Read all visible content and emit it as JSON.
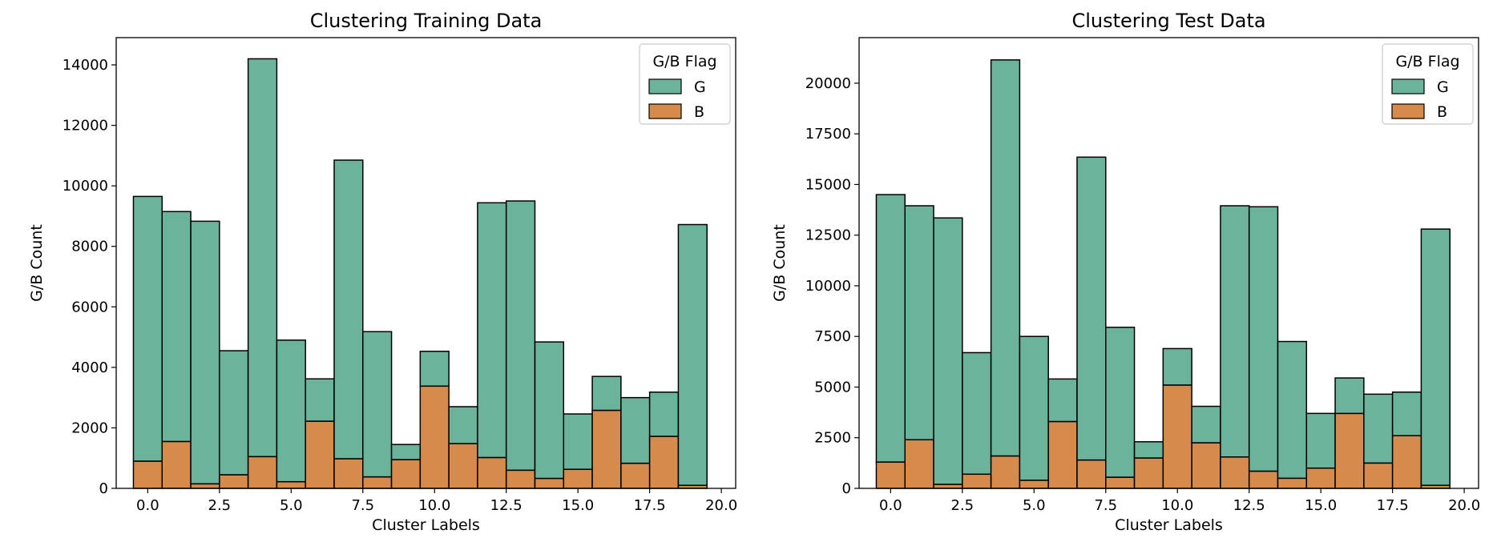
{
  "chart_data": [
    {
      "type": "bar",
      "stacked": true,
      "title": "Clustering Training Data",
      "xlabel": "Cluster Labels",
      "ylabel": "G/B Count",
      "xlim": [
        -1.1,
        20.5
      ],
      "ylim": [
        0,
        14900
      ],
      "xticks": [
        0,
        2.5,
        5,
        7.5,
        10,
        12.5,
        15,
        17.5,
        20
      ],
      "xtick_labels": [
        "0.0",
        "2.5",
        "5.0",
        "7.5",
        "10.0",
        "12.5",
        "15.0",
        "17.5",
        "20.0"
      ],
      "yticks": [
        0,
        2000,
        4000,
        6000,
        8000,
        10000,
        12000,
        14000
      ],
      "ytick_labels": [
        "0",
        "2000",
        "4000",
        "6000",
        "8000",
        "10000",
        "12000",
        "14000"
      ],
      "bin_edges": [
        -0.5,
        0.5,
        1.5,
        2.5,
        3.5,
        4.5,
        5.5,
        6.5,
        7.5,
        8.5,
        9.5,
        10.5,
        11.5,
        12.5,
        13.5,
        14.5,
        15.5,
        16.5,
        17.5,
        18.5,
        19.5
      ],
      "legend": {
        "title": "G/B Flag",
        "position": "upper right"
      },
      "grid": false,
      "series": [
        {
          "name": "B",
          "color": "#d68b4c",
          "values": [
            900,
            1550,
            150,
            450,
            1050,
            220,
            2220,
            980,
            380,
            950,
            3380,
            1480,
            1020,
            600,
            330,
            630,
            2580,
            830,
            1720,
            100
          ]
        },
        {
          "name": "G",
          "color": "#6bb39a",
          "values": [
            8750,
            7600,
            8680,
            4100,
            13150,
            4680,
            1400,
            9870,
            4800,
            500,
            1150,
            1220,
            8420,
            8900,
            4510,
            1830,
            1120,
            2170,
            1460,
            8620
          ]
        }
      ]
    },
    {
      "type": "bar",
      "stacked": true,
      "title": "Clustering Test Data",
      "xlabel": "Cluster Labels",
      "ylabel": "G/B Count",
      "xlim": [
        -1.1,
        20.5
      ],
      "ylim": [
        0,
        22250
      ],
      "xticks": [
        0,
        2.5,
        5,
        7.5,
        10,
        12.5,
        15,
        17.5,
        20
      ],
      "xtick_labels": [
        "0.0",
        "2.5",
        "5.0",
        "7.5",
        "10.0",
        "12.5",
        "15.0",
        "17.5",
        "20.0"
      ],
      "yticks": [
        0,
        2500,
        5000,
        7500,
        10000,
        12500,
        15000,
        17500,
        20000
      ],
      "ytick_labels": [
        "0",
        "2500",
        "5000",
        "7500",
        "10000",
        "12500",
        "15000",
        "17500",
        "20000"
      ],
      "bin_edges": [
        -0.5,
        0.5,
        1.5,
        2.5,
        3.5,
        4.5,
        5.5,
        6.5,
        7.5,
        8.5,
        9.5,
        10.5,
        11.5,
        12.5,
        13.5,
        14.5,
        15.5,
        16.5,
        17.5,
        18.5,
        19.5
      ],
      "legend": {
        "title": "G/B Flag",
        "position": "upper right"
      },
      "grid": false,
      "series": [
        {
          "name": "B",
          "color": "#d68b4c",
          "values": [
            1300,
            2400,
            200,
            700,
            1600,
            400,
            3300,
            1400,
            550,
            1500,
            5100,
            2250,
            1550,
            850,
            500,
            1000,
            3700,
            1250,
            2600,
            150
          ]
        },
        {
          "name": "G",
          "color": "#6bb39a",
          "values": [
            13200,
            11550,
            13150,
            6000,
            19550,
            7100,
            2100,
            14950,
            7400,
            800,
            1800,
            1800,
            12400,
            13050,
            6750,
            2700,
            1750,
            3400,
            2150,
            12650
          ]
        }
      ]
    }
  ]
}
